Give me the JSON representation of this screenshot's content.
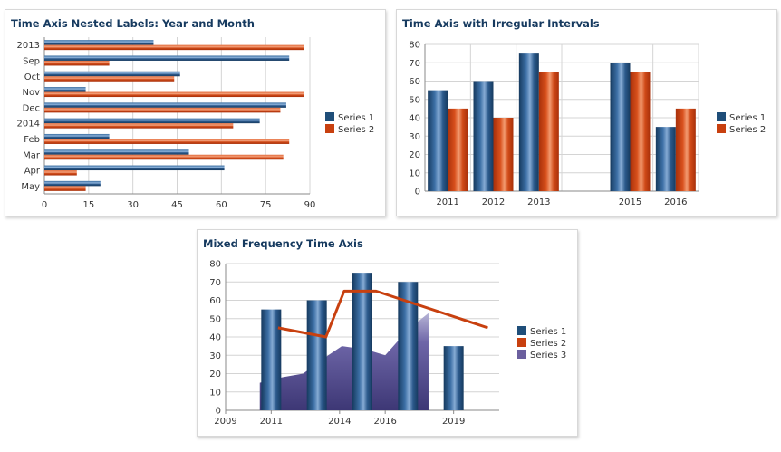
{
  "colors": {
    "series1": "#1f4e79",
    "series2": "#c8400f",
    "series3": "#6b5f9e"
  },
  "chart_data": [
    {
      "type": "bar",
      "orientation": "horizontal",
      "title": "Time Axis Nested Labels: Year and Month",
      "categories": [
        "2013",
        "Sep",
        "Oct",
        "Nov",
        "Dec",
        "2014",
        "Feb",
        "Mar",
        "Apr",
        "May"
      ],
      "series": [
        {
          "name": "Series 1",
          "values": [
            37,
            83,
            46,
            14,
            82,
            73,
            22,
            49,
            61,
            19
          ]
        },
        {
          "name": "Series 2",
          "values": [
            88,
            22,
            44,
            88,
            80,
            64,
            83,
            81,
            11,
            14
          ]
        }
      ],
      "xlim": [
        0,
        90
      ],
      "xticks": [
        "0",
        "15",
        "30",
        "45",
        "60",
        "75",
        "90"
      ],
      "grid": true,
      "legend": "right"
    },
    {
      "type": "bar",
      "title": "Time Axis with Irregular Intervals",
      "categories": [
        "2011",
        "2012",
        "2013",
        "2015",
        "2016"
      ],
      "x": [
        2011,
        2012,
        2013,
        2015,
        2016
      ],
      "series": [
        {
          "name": "Series 1",
          "values": [
            55,
            60,
            75,
            70,
            35
          ]
        },
        {
          "name": "Series 2",
          "values": [
            45,
            40,
            65,
            65,
            45
          ]
        }
      ],
      "ylim": [
        0,
        80
      ],
      "yticks": [
        "0",
        "10",
        "20",
        "30",
        "40",
        "50",
        "60",
        "70",
        "80"
      ],
      "grid": true,
      "legend": "right"
    },
    {
      "type": "bar",
      "title": "Mixed Frequency Time Axis",
      "xlim": [
        2009,
        2021
      ],
      "xticks": [
        "2009",
        "2011",
        "2014",
        "2016",
        "2019"
      ],
      "ylim": [
        0,
        80
      ],
      "yticks": [
        "0",
        "10",
        "20",
        "30",
        "40",
        "50",
        "60",
        "70",
        "80"
      ],
      "series": [
        {
          "name": "Series 1",
          "kind": "bar",
          "x": [
            2011,
            2013,
            2015,
            2017,
            2019
          ],
          "values": [
            55,
            60,
            75,
            70,
            35
          ]
        },
        {
          "name": "Series 2",
          "kind": "line",
          "x": [
            2011.3,
            2013.4,
            2014.2,
            2015.6,
            2020.5
          ],
          "values": [
            45,
            40,
            65,
            65,
            45
          ]
        },
        {
          "name": "Series 3",
          "kind": "area",
          "x": [
            2010.5,
            2011.5,
            2012.4,
            2013.5,
            2014.1,
            2015.2,
            2016,
            2017,
            2017.9
          ],
          "values": [
            15,
            18,
            20,
            30,
            35,
            33,
            30,
            44,
            53
          ]
        }
      ],
      "grid": true,
      "legend": "right"
    }
  ]
}
